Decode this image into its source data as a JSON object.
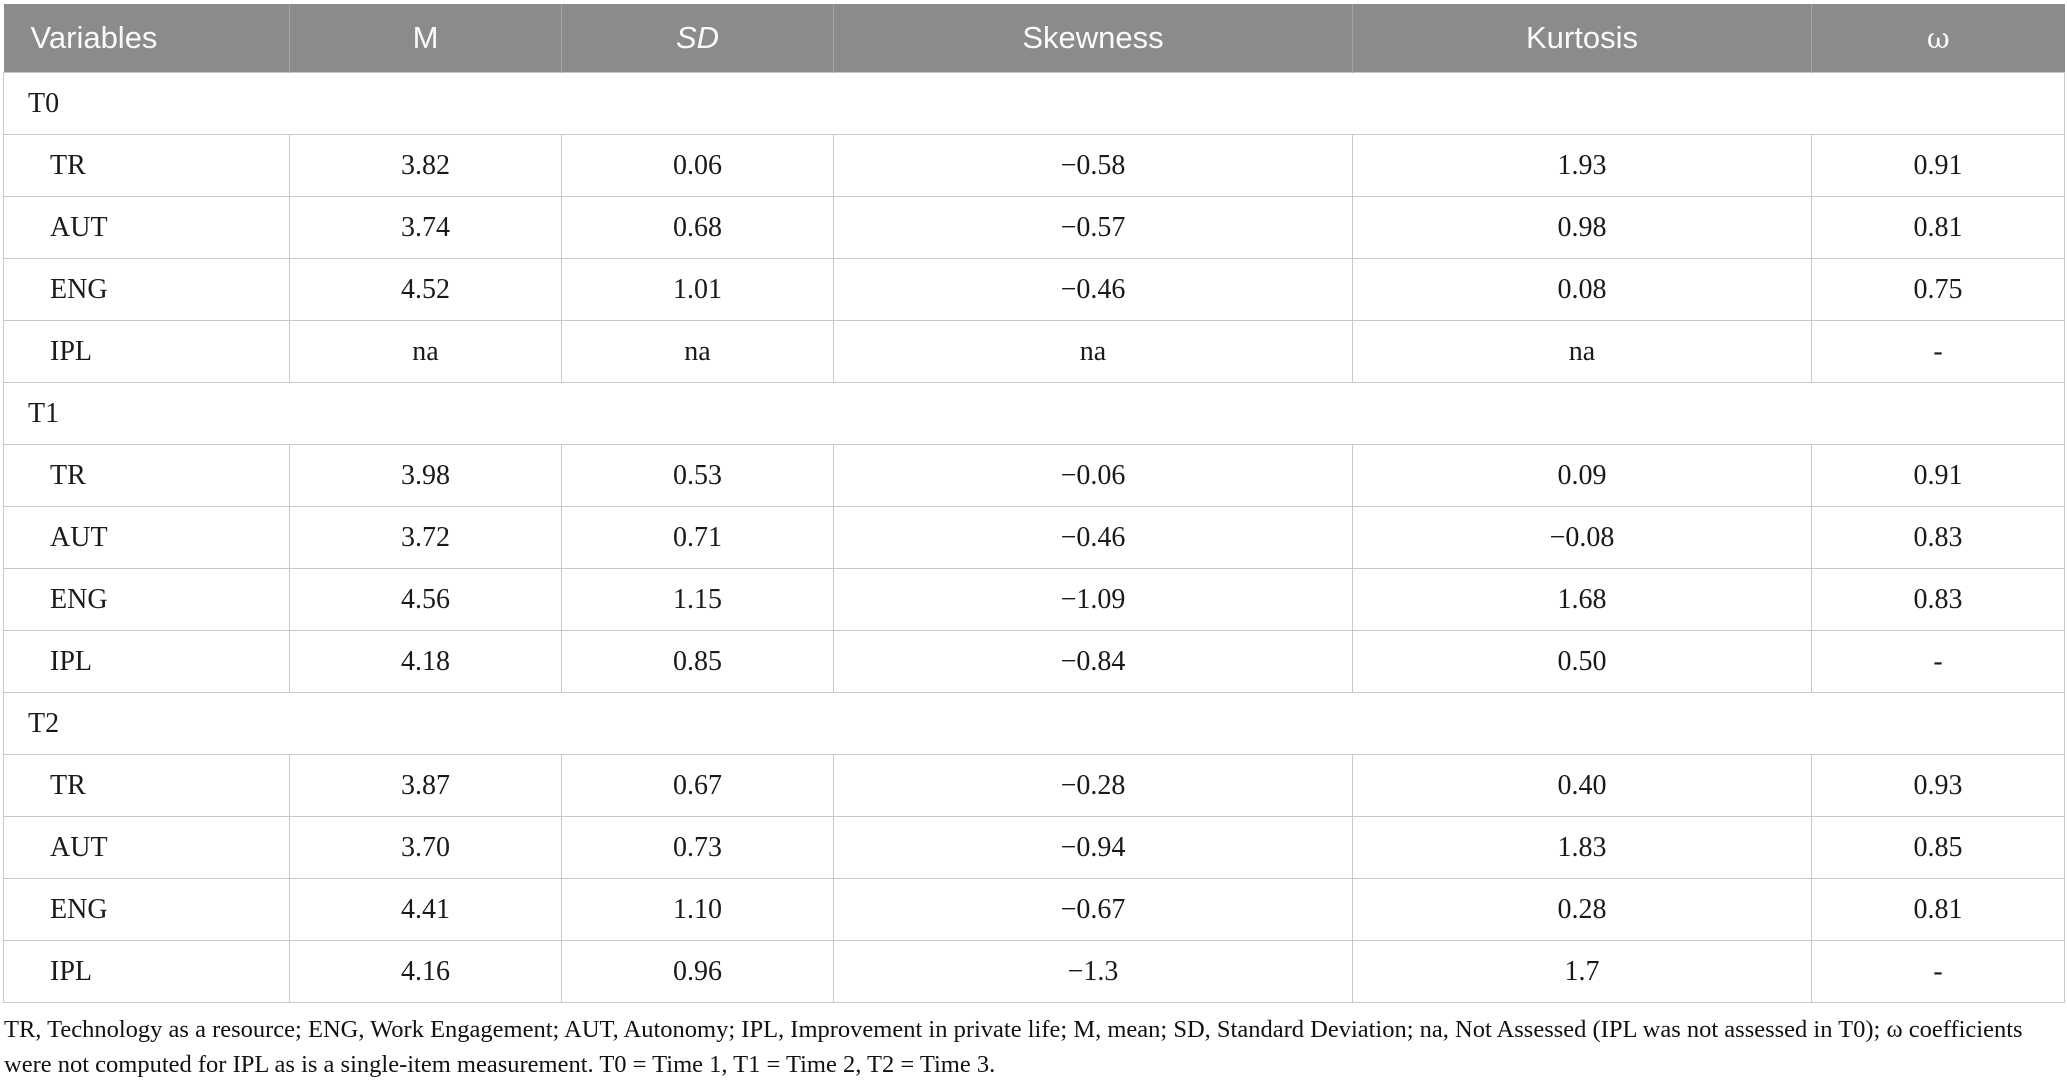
{
  "colors": {
    "header_bg": "#8b8b8b",
    "header_text": "#fafafa",
    "border": "#c9c9c9",
    "body_text": "#1a1a1a"
  },
  "table": {
    "columns": [
      "Variables",
      "M",
      "SD",
      "Skewness",
      "Kurtosis",
      "ω"
    ],
    "groups": [
      {
        "label": "T0",
        "rows": [
          {
            "variable": "TR",
            "m": "3.82",
            "sd": "0.06",
            "skewness": "−0.58",
            "kurtosis": "1.93",
            "omega": "0.91"
          },
          {
            "variable": "AUT",
            "m": "3.74",
            "sd": "0.68",
            "skewness": "−0.57",
            "kurtosis": "0.98",
            "omega": "0.81"
          },
          {
            "variable": "ENG",
            "m": "4.52",
            "sd": "1.01",
            "skewness": "−0.46",
            "kurtosis": "0.08",
            "omega": "0.75"
          },
          {
            "variable": "IPL",
            "m": "na",
            "sd": "na",
            "skewness": "na",
            "kurtosis": "na",
            "omega": "-"
          }
        ]
      },
      {
        "label": "T1",
        "rows": [
          {
            "variable": "TR",
            "m": "3.98",
            "sd": "0.53",
            "skewness": "−0.06",
            "kurtosis": "0.09",
            "omega": "0.91"
          },
          {
            "variable": "AUT",
            "m": "3.72",
            "sd": "0.71",
            "skewness": "−0.46",
            "kurtosis": "−0.08",
            "omega": "0.83"
          },
          {
            "variable": "ENG",
            "m": "4.56",
            "sd": "1.15",
            "skewness": "−1.09",
            "kurtosis": "1.68",
            "omega": "0.83"
          },
          {
            "variable": "IPL",
            "m": "4.18",
            "sd": "0.85",
            "skewness": "−0.84",
            "kurtosis": "0.50",
            "omega": "-"
          }
        ]
      },
      {
        "label": "T2",
        "rows": [
          {
            "variable": "TR",
            "m": "3.87",
            "sd": "0.67",
            "skewness": "−0.28",
            "kurtosis": "0.40",
            "omega": "0.93"
          },
          {
            "variable": "AUT",
            "m": "3.70",
            "sd": "0.73",
            "skewness": "−0.94",
            "kurtosis": "1.83",
            "omega": "0.85"
          },
          {
            "variable": "ENG",
            "m": "4.41",
            "sd": "1.10",
            "skewness": "−0.67",
            "kurtosis": "0.28",
            "omega": "0.81"
          },
          {
            "variable": "IPL",
            "m": "4.16",
            "sd": "0.96",
            "skewness": "−1.3",
            "kurtosis": "1.7",
            "omega": "-"
          }
        ]
      }
    ],
    "footnote": "TR, Technology as a resource; ENG, Work Engagement; AUT, Autonomy; IPL, Improvement in private life; M, mean; SD, Standard Deviation; na, Not Assessed (IPL was not assessed in T0); ω coefficients were not computed for IPL as is a single-item measurement. T0 = Time 1, T1 = Time 2, T2 = Time 3."
  }
}
